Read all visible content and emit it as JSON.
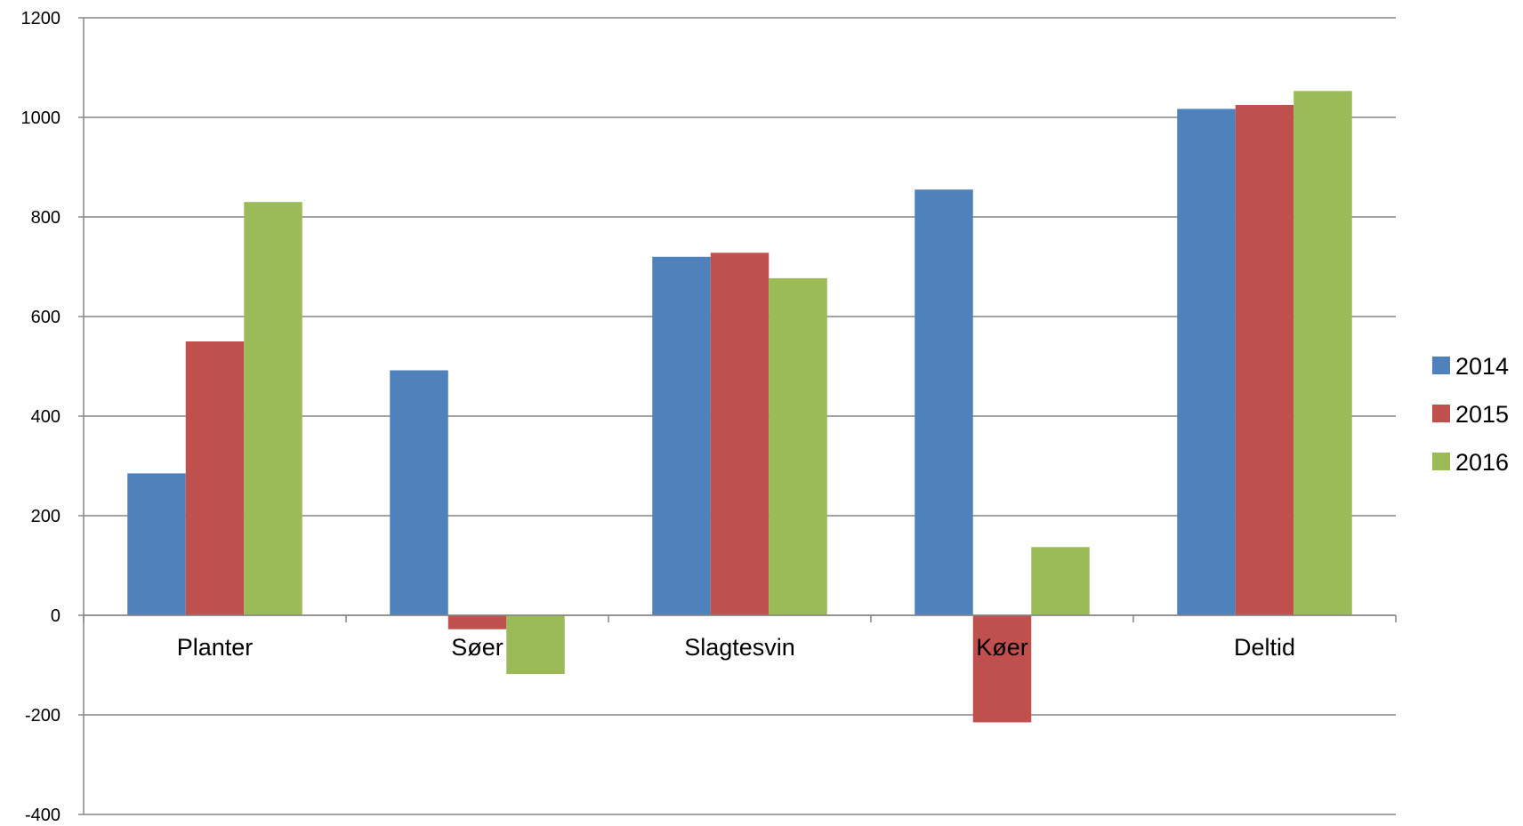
{
  "chart_data": {
    "type": "bar",
    "title": "",
    "xlabel": "",
    "ylabel": "",
    "categories": [
      "Planter",
      "Søer",
      "Slagtesvin",
      "Køer",
      "Deltid"
    ],
    "series": [
      {
        "name": "2014",
        "color": "#4F81BD",
        "values": [
          285,
          492,
          720,
          855,
          1017
        ]
      },
      {
        "name": "2015",
        "color": "#C0504D",
        "values": [
          550,
          -28,
          728,
          -215,
          1025
        ]
      },
      {
        "name": "2016",
        "color": "#9BBB59",
        "values": [
          830,
          -118,
          677,
          137,
          1053
        ]
      }
    ],
    "ylim": [
      -400,
      1200
    ],
    "yticks": [
      -400,
      -200,
      0,
      200,
      400,
      600,
      800,
      1000,
      1200
    ],
    "ytick_labels": [
      "-400",
      "-200",
      "0",
      "200",
      "400",
      "600",
      "800",
      "1000",
      "1200"
    ],
    "grid": true,
    "legend_position": "right"
  }
}
